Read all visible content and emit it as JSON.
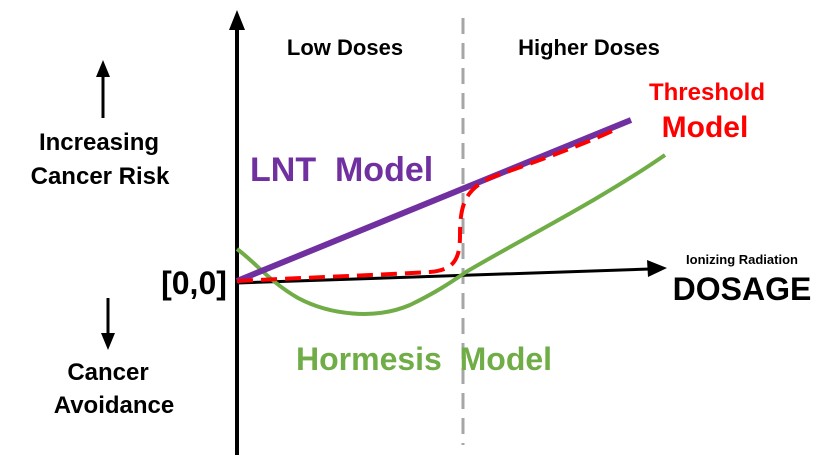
{
  "regions": {
    "low": "Low Doses",
    "high": "Higher Doses"
  },
  "y_axis": {
    "up_line1": "Increasing",
    "up_line2": "Cancer Risk",
    "down_line1": "Cancer",
    "down_line2": "Avoidance",
    "origin": "[0,0]"
  },
  "x_axis": {
    "sublabel": "Ionizing Radiation",
    "label": "DOSAGE"
  },
  "models": {
    "lnt": {
      "label": "LNT  Model",
      "color": "#7030a0"
    },
    "threshold": {
      "line1": "Threshold",
      "line2": "Model",
      "color": "#ff0000"
    },
    "hormesis": {
      "label": "Hormesis  Model",
      "color": "#70ad47"
    }
  },
  "colors": {
    "axis": "#000000",
    "divider": "#a6a6a6"
  }
}
